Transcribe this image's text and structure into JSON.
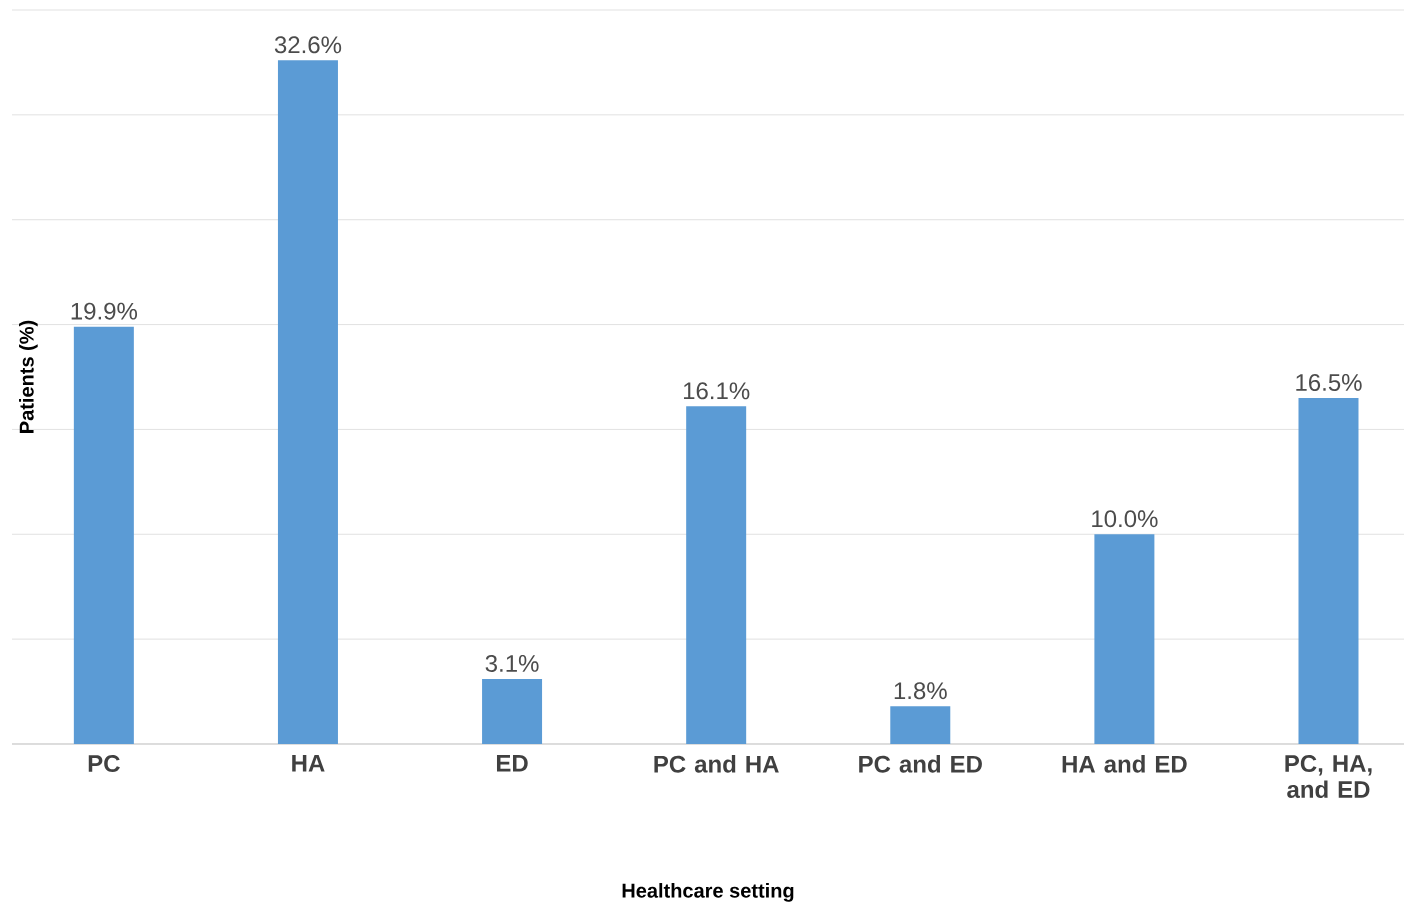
{
  "chart_data": {
    "type": "bar",
    "xlabel": "Healthcare setting",
    "ylabel": "Patients (%)",
    "categories": [
      "PC",
      "HA",
      "ED",
      "PC and HA",
      "PC and ED",
      "HA and ED",
      "PC, HA, and ED"
    ],
    "values": [
      19.9,
      32.6,
      3.1,
      16.1,
      1.8,
      10.0,
      16.5
    ],
    "value_labels": [
      "19.9%",
      "32.6%",
      "3.1%",
      "16.1%",
      "1.8%",
      "10.0%",
      "16.5%"
    ],
    "color": "#5b9bd5",
    "ylim": [
      0,
      35
    ],
    "yticks": [
      {
        "value": 0,
        "label": null
      },
      {
        "value": 5,
        "label": null
      },
      {
        "value": 10,
        "label": null
      },
      {
        "value": 15,
        "label": null
      },
      {
        "value": 20,
        "label": null
      },
      {
        "value": 25,
        "label": null
      },
      {
        "value": 30,
        "label": null
      },
      {
        "value": 35,
        "label": null
      }
    ],
    "grid": "y"
  }
}
